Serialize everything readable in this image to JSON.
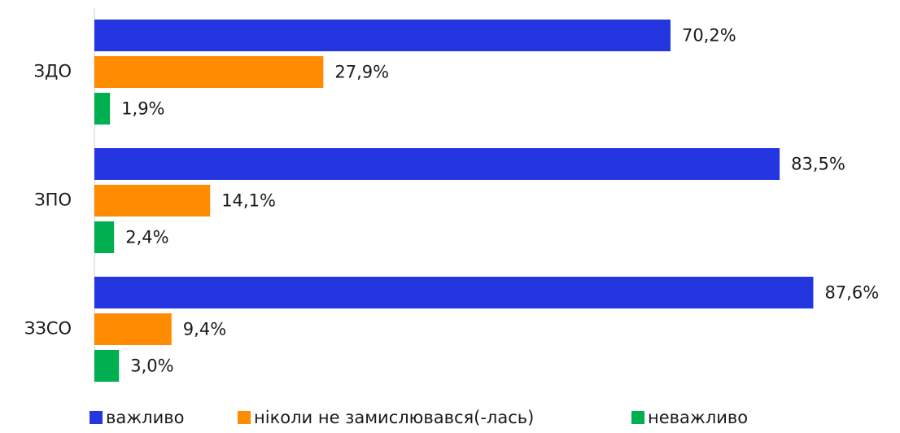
{
  "chart_data": {
    "type": "barh",
    "categories": [
      "ЗДО",
      "ЗПО",
      "ЗЗСО"
    ],
    "series": [
      {
        "name": "важливо",
        "color": "#2436e0",
        "values": [
          70.2,
          83.5,
          87.6
        ],
        "value_labels": [
          "70,2%",
          "83,5%",
          "87,6%"
        ]
      },
      {
        "name": "ніколи не замислювався(-лась)",
        "color": "#ff8c00",
        "values": [
          27.9,
          14.1,
          9.4
        ],
        "value_labels": [
          "27,9%",
          "14,1%",
          "9,4%"
        ]
      },
      {
        "name": "неважливо",
        "color": "#00b050",
        "values": [
          1.9,
          2.4,
          3.0
        ],
        "value_labels": [
          "1,9%",
          "2,4%",
          "3,0%"
        ]
      }
    ],
    "legend": "bottom"
  }
}
